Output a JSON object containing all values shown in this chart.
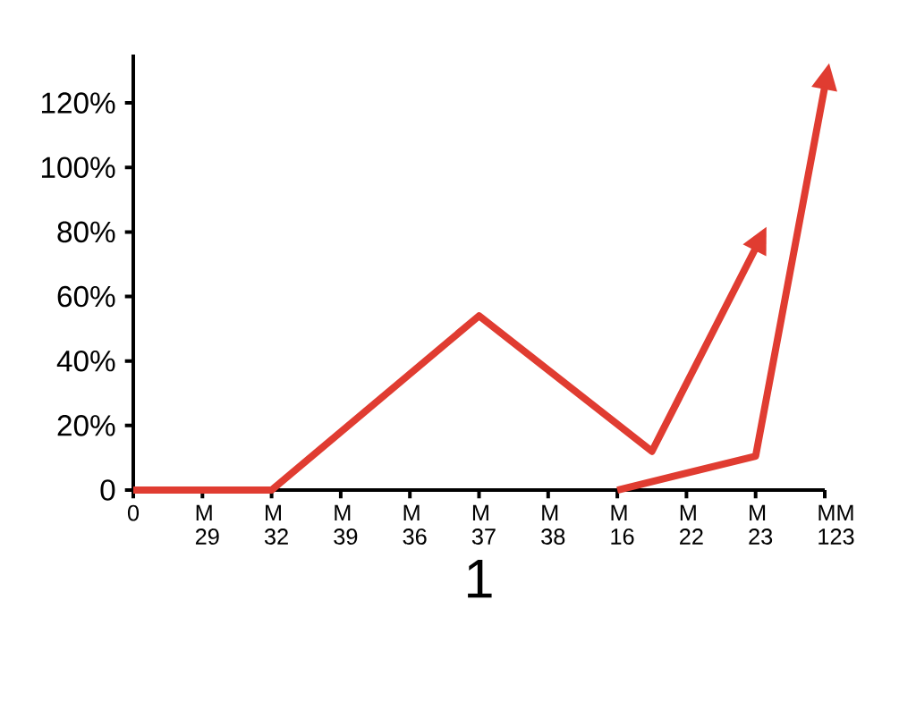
{
  "chart_data": {
    "type": "line",
    "xlabel": "1",
    "categories": [
      "0",
      null,
      "M 29",
      null,
      "M 32",
      null,
      "M 39",
      null,
      "M 36",
      null,
      "M 37",
      null,
      "M 38",
      null,
      "M 16",
      null,
      "M 22",
      null,
      "M 23",
      null,
      "MM 123"
    ],
    "ylim": [
      0,
      135
    ],
    "yticks": [
      0,
      {
        "value": 20,
        "label": "20%"
      },
      {
        "value": 40,
        "label": "40%"
      },
      {
        "value": 60,
        "label": "60%"
      },
      {
        "value": 80,
        "label": "80%"
      },
      {
        "value": 100,
        "label": "100%"
      },
      {
        "value": 120,
        "label": "120%"
      }
    ],
    "marker": "none",
    "line_style": "solid",
    "series": [
      {
        "color": "#e03c31",
        "values": [
          0,
          null,
          null,
          null,
          0,
          null,
          null,
          null,
          null,
          null,
          54,
          null,
          null,
          null,
          null,
          12,
          null,
          null,
          75,
          null,
          null
        ]
      },
      {
        "color": "#e03c31",
        "values": [
          null,
          null,
          null,
          null,
          null,
          null,
          null,
          null,
          null,
          null,
          null,
          null,
          null,
          null,
          0,
          null,
          null,
          null,
          10.5,
          null,
          125
        ]
      }
    ]
  }
}
